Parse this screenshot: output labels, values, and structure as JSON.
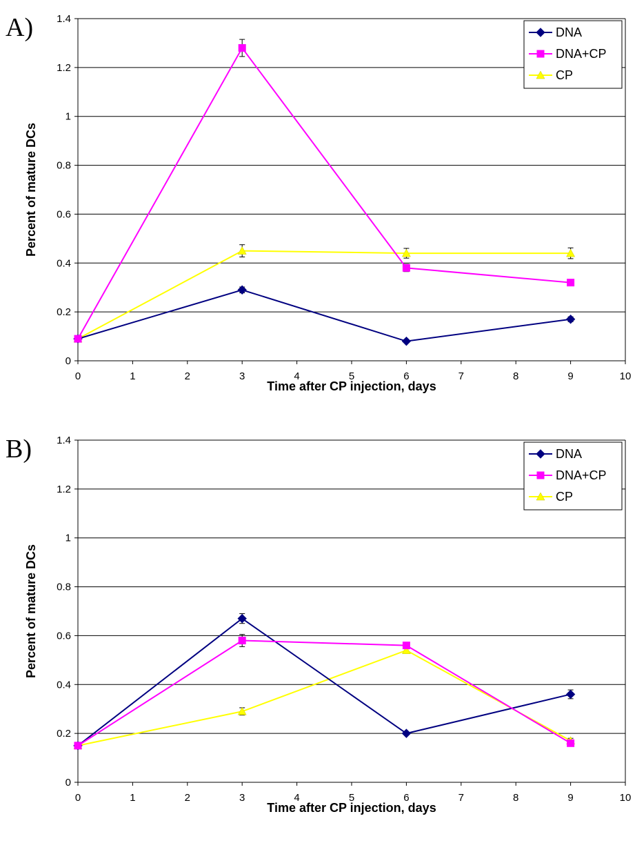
{
  "chart_data": [
    {
      "type": "line",
      "panel_label": "A)",
      "xlabel": "Time after CP injection, days",
      "ylabel": "Percent of mature DCs",
      "xlim": [
        0,
        10
      ],
      "ylim": [
        0,
        1.4
      ],
      "xticks": [
        0,
        1,
        2,
        3,
        4,
        5,
        6,
        7,
        8,
        9,
        10
      ],
      "yticks": [
        0,
        0.2,
        0.4,
        0.6,
        0.8,
        1,
        1.2,
        1.4
      ],
      "grid": "horizontal",
      "legend": "top-right",
      "x": [
        0,
        3,
        6,
        9
      ],
      "series": [
        {
          "name": "DNA",
          "color": "#000080",
          "marker": "diamond",
          "values": [
            0.09,
            0.29,
            0.08,
            0.17
          ],
          "errors": [
            0.005,
            0.012,
            0.005,
            0.01
          ]
        },
        {
          "name": "DNA+CP",
          "color": "#FF00FF",
          "marker": "square",
          "values": [
            0.09,
            1.28,
            0.38,
            0.32
          ],
          "errors": [
            0.005,
            0.035,
            0.015,
            0.01
          ]
        },
        {
          "name": "CP",
          "color": "#FFFF00",
          "marker": "triangle",
          "values": [
            0.09,
            0.45,
            0.44,
            0.44
          ],
          "errors": [
            0.005,
            0.025,
            0.02,
            0.022
          ]
        }
      ]
    },
    {
      "type": "line",
      "panel_label": "B)",
      "xlabel": "Time after CP injection, days",
      "ylabel": "Percent of mature DCs",
      "xlim": [
        0,
        10
      ],
      "ylim": [
        0,
        1.4
      ],
      "xticks": [
        0,
        1,
        2,
        3,
        4,
        5,
        6,
        7,
        8,
        9,
        10
      ],
      "yticks": [
        0,
        0.2,
        0.4,
        0.6,
        0.8,
        1,
        1.2,
        1.4
      ],
      "grid": "horizontal",
      "legend": "top-right",
      "x": [
        0,
        3,
        6,
        9
      ],
      "series": [
        {
          "name": "DNA",
          "color": "#000080",
          "marker": "diamond",
          "values": [
            0.15,
            0.67,
            0.2,
            0.36
          ],
          "errors": [
            0.01,
            0.02,
            0.005,
            0.018
          ]
        },
        {
          "name": "DNA+CP",
          "color": "#FF00FF",
          "marker": "square",
          "values": [
            0.15,
            0.58,
            0.56,
            0.16
          ],
          "errors": [
            0.01,
            0.025,
            0.012,
            0.01
          ]
        },
        {
          "name": "CP",
          "color": "#FFFF00",
          "marker": "triangle",
          "values": [
            0.15,
            0.29,
            0.54,
            0.17
          ],
          "errors": [
            0.01,
            0.015,
            0.012,
            0.01
          ]
        }
      ]
    }
  ]
}
